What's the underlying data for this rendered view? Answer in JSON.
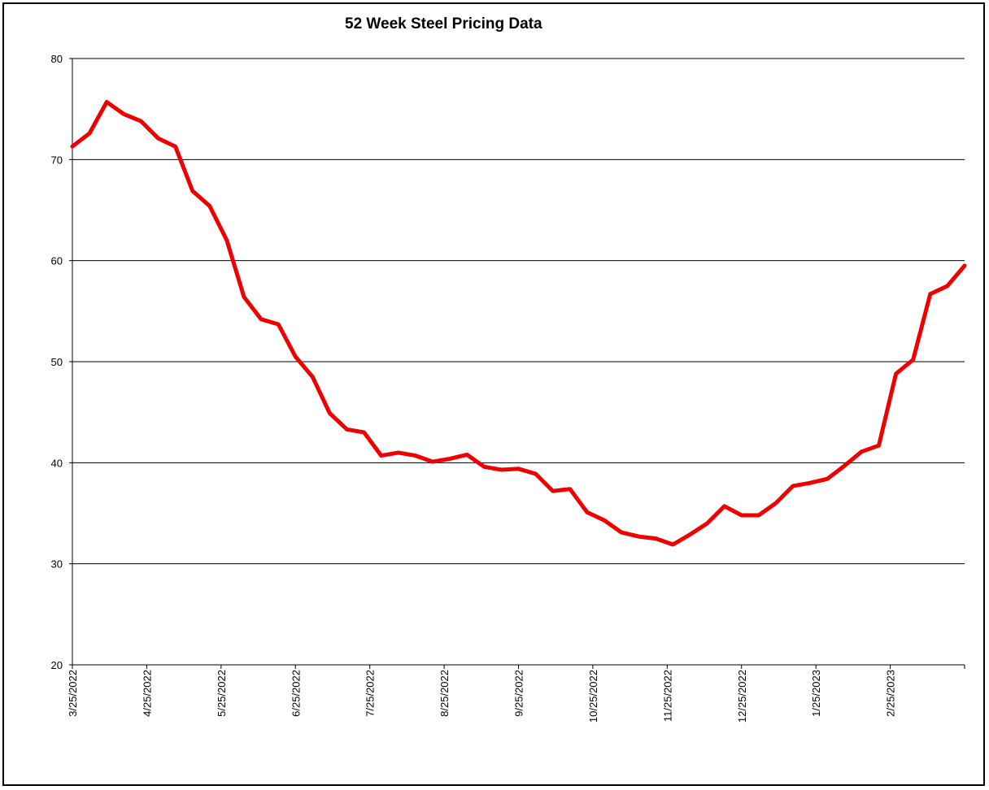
{
  "chart_data": {
    "type": "line",
    "title": "52 Week Steel Pricing Data",
    "xlabel": "",
    "ylabel": "",
    "ylim": [
      20,
      80
    ],
    "yticks": [
      20,
      30,
      40,
      50,
      60,
      70,
      80
    ],
    "xtick_labels": [
      "3/25/2022",
      "4/25/2022",
      "5/25/2022",
      "6/25/2022",
      "7/25/2022",
      "8/25/2022",
      "9/25/2022",
      "10/25/2022",
      "11/25/2022",
      "12/25/2022",
      "1/25/2023",
      "2/25/2023"
    ],
    "grid": true,
    "legend": "none",
    "line_color": "#ee0000",
    "series": [
      {
        "values": [
          71.3,
          72.6,
          75.7,
          74.5,
          73.8,
          72.1,
          71.3,
          66.9,
          65.4,
          62.0,
          56.4,
          54.2,
          53.7,
          50.5,
          48.5,
          44.9,
          43.3,
          43.0,
          40.7,
          41.0,
          40.7,
          40.1,
          40.4,
          40.8,
          39.6,
          39.3,
          39.4,
          38.9,
          37.2,
          37.4,
          35.1,
          34.3,
          33.1,
          32.7,
          32.5,
          31.9,
          32.9,
          34.0,
          35.7,
          34.8,
          34.8,
          36.0,
          37.7,
          38.0,
          38.4,
          39.7,
          41.1,
          41.7,
          48.8,
          50.2,
          56.7,
          57.5,
          59.5
        ]
      }
    ]
  }
}
